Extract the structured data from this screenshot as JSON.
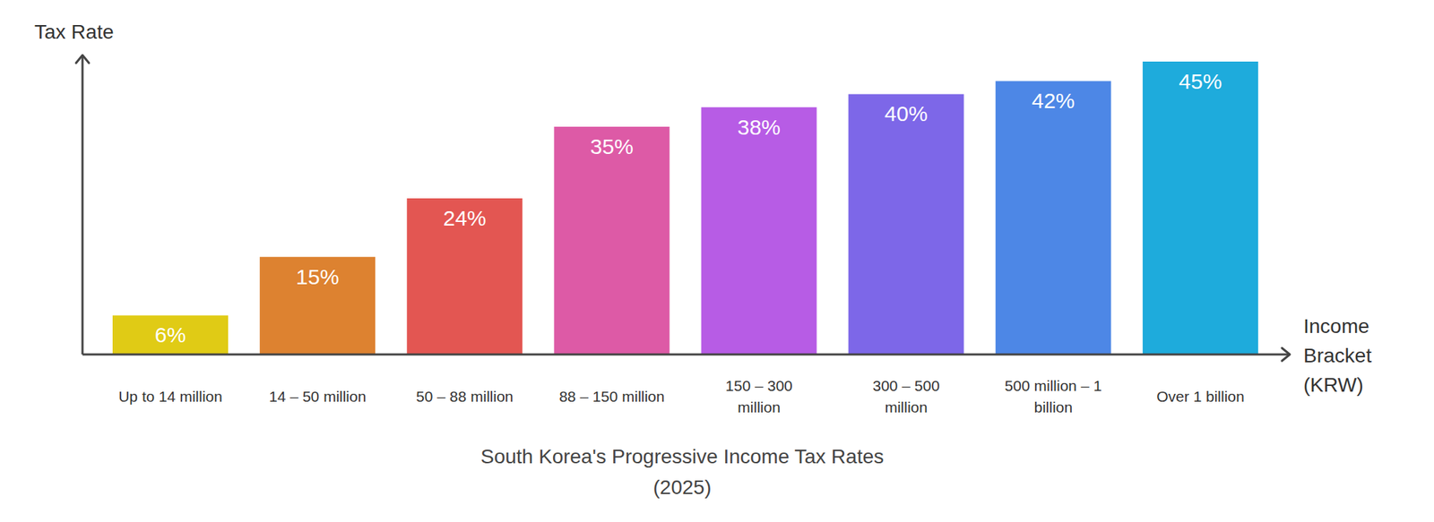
{
  "chart_data": {
    "type": "bar",
    "title": "South Korea's Progressive Income Tax Rates",
    "subtitle": "(2025)",
    "x_label": "Income Bracket (KRW)",
    "y_label": "Tax Rate",
    "categories": [
      "Up to 14 million",
      "14 – 50 million",
      "50 – 88 million",
      "88 – 150 million",
      "150 – 300 million",
      "300 – 500 million",
      "500 million – 1 billion",
      "Over 1 billion"
    ],
    "values": [
      6,
      15,
      24,
      35,
      38,
      40,
      42,
      45
    ],
    "value_labels": [
      "6%",
      "15%",
      "24%",
      "35%",
      "38%",
      "40%",
      "42%",
      "45%"
    ],
    "colors": [
      "#e0cb15",
      "#dd8230",
      "#e35652",
      "#dd5aa6",
      "#b75ce5",
      "#7d67e8",
      "#4d87e6",
      "#1eabdc"
    ],
    "ylim": [
      0,
      46
    ],
    "tick_labels": "x",
    "data_labels": true,
    "grid": false
  }
}
